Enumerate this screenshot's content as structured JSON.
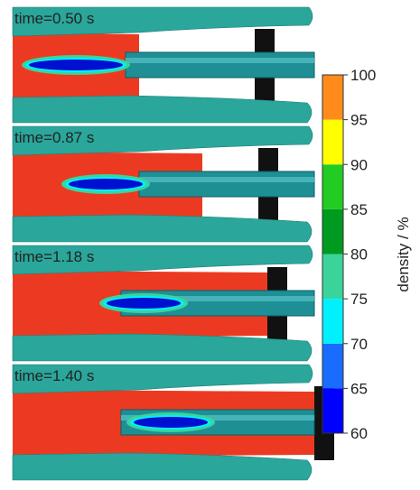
{
  "panels": [
    {
      "label": "time=0.50 s"
    },
    {
      "label": "time=0.87 s"
    },
    {
      "label": "time=1.18 s"
    },
    {
      "label": "time=1.40 s"
    }
  ],
  "colorbar": {
    "label": "density / %",
    "lim": [
      60,
      100
    ],
    "ticks": [
      60,
      65,
      70,
      75,
      80,
      85,
      90,
      95,
      100
    ],
    "colors": [
      "#0000ff",
      "#1a6cff",
      "#00f0ff",
      "#3ad49a",
      "#009a20",
      "#22cc22",
      "#ffff00",
      "#ff8c1a"
    ]
  }
}
